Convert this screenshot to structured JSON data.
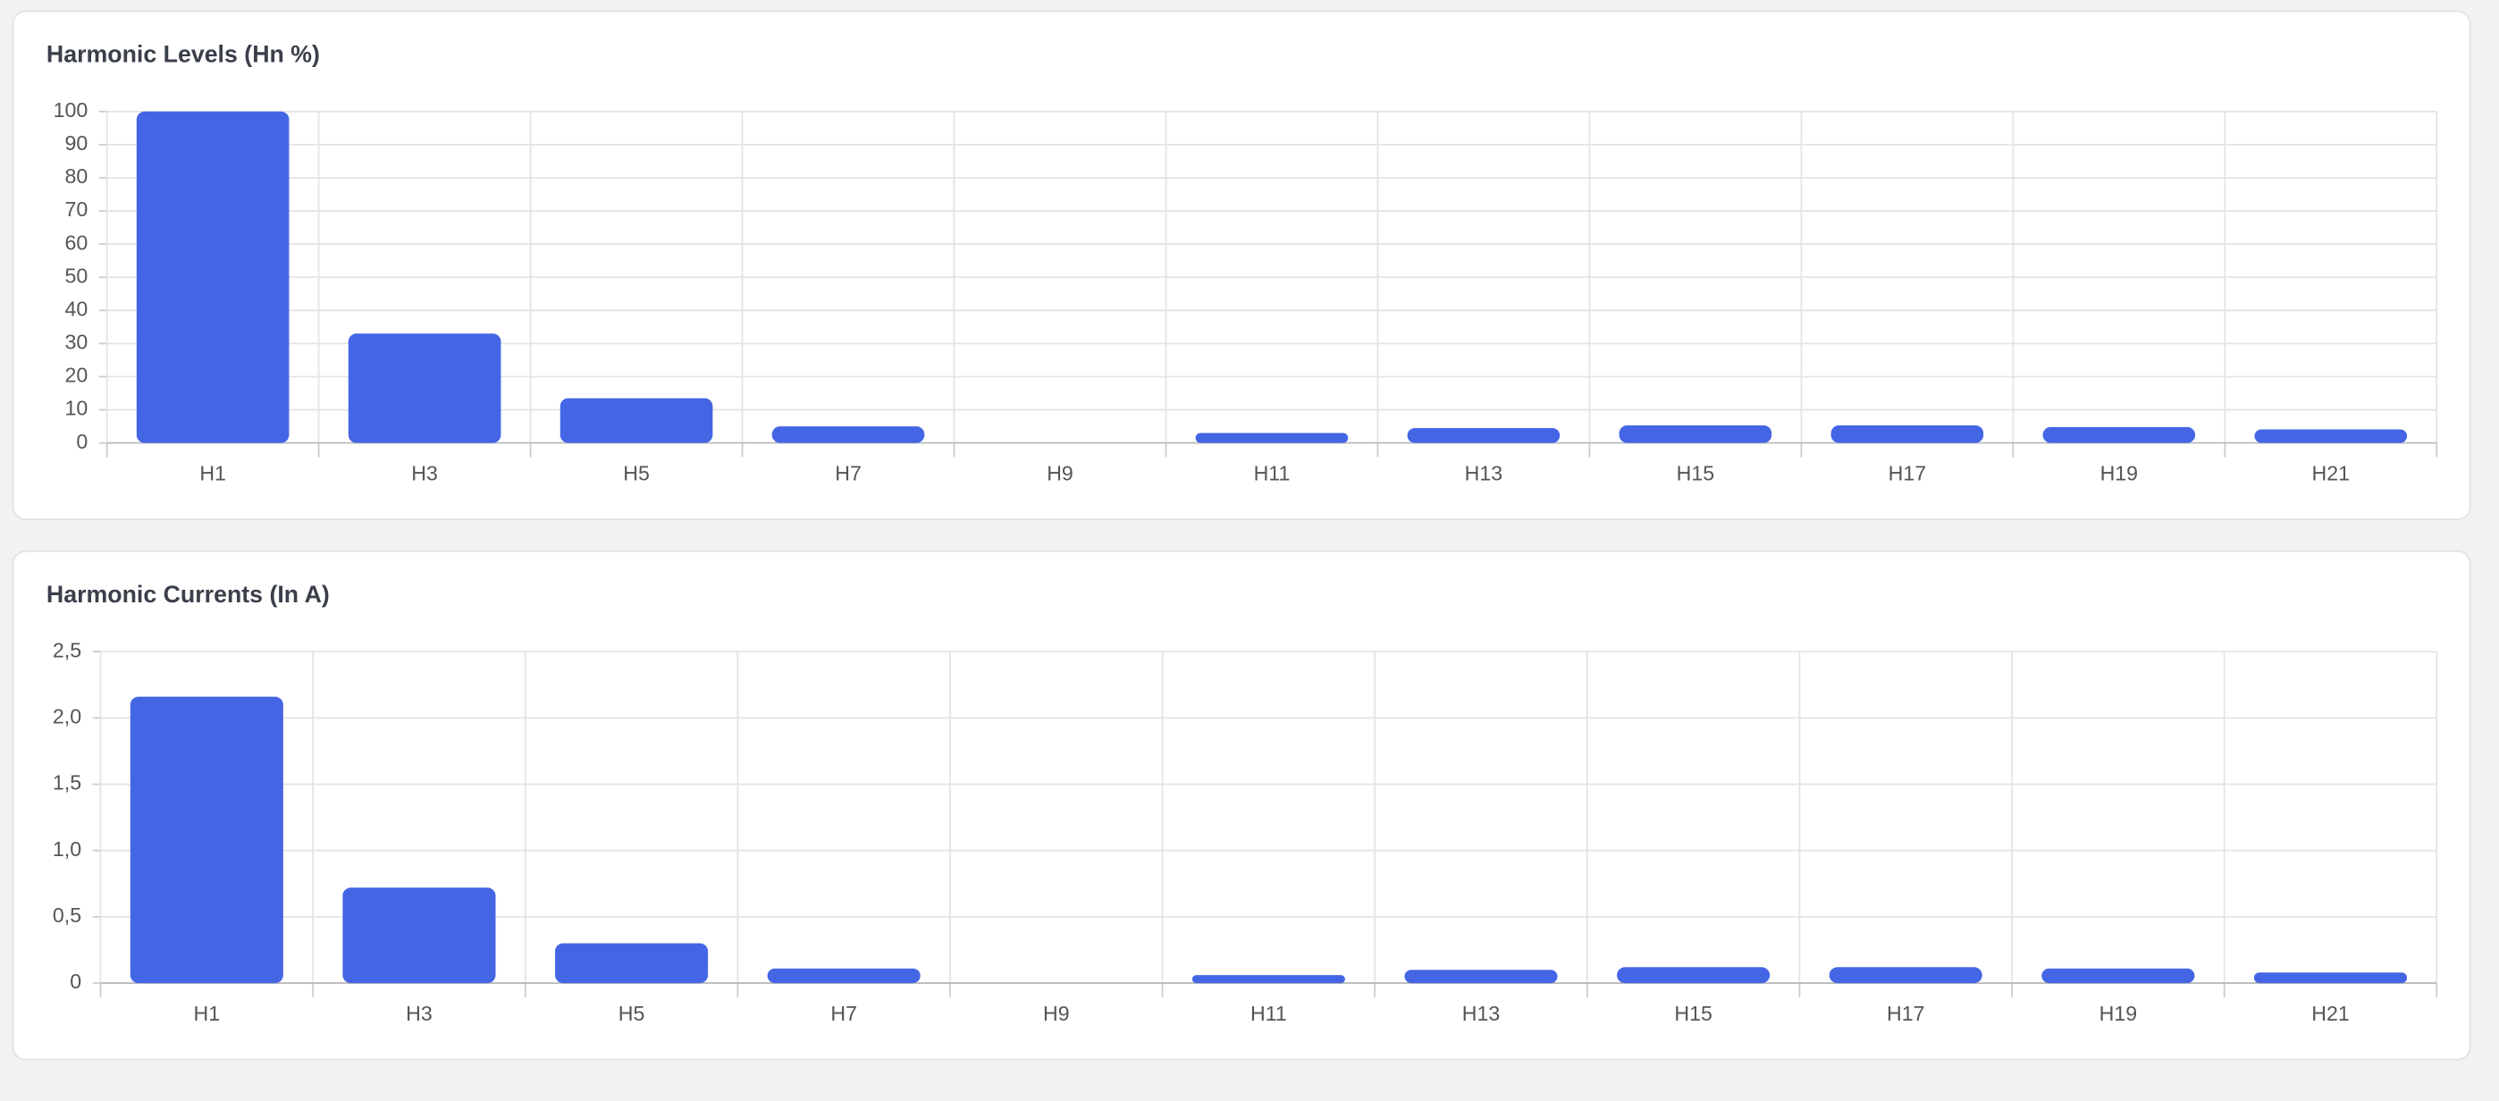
{
  "chart_data": [
    {
      "type": "bar",
      "title": "Harmonic Levels (Hn %)",
      "categories": [
        "H1",
        "H3",
        "H5",
        "H7",
        "H9",
        "H11",
        "H13",
        "H15",
        "H17",
        "H19",
        "H21"
      ],
      "values": [
        100,
        33,
        13.5,
        5,
        0,
        3,
        4.5,
        5.3,
        5.3,
        4.8,
        4.1
      ],
      "color": "#4466e5",
      "ylim": [
        0,
        100
      ],
      "yticks": [
        0,
        10,
        20,
        30,
        40,
        50,
        60,
        70,
        80,
        90,
        100
      ],
      "grid": true
    },
    {
      "type": "bar",
      "title": "Harmonic Currents (In A)",
      "categories": [
        "H1",
        "H3",
        "H5",
        "H7",
        "H9",
        "H11",
        "H13",
        "H15",
        "H17",
        "H19",
        "H21"
      ],
      "values": [
        2.16,
        0.72,
        0.3,
        0.11,
        0,
        0.06,
        0.1,
        0.12,
        0.12,
        0.11,
        0.08
      ],
      "color": "#4466e5",
      "ylim": [
        0,
        2.5
      ],
      "yticks": [
        0,
        {
          "value": 0.5,
          "label": "0,5"
        },
        {
          "value": 1,
          "label": "1,0"
        },
        {
          "value": 1.5,
          "label": "1,5"
        },
        {
          "value": 2,
          "label": "2,0"
        },
        {
          "value": 2.5,
          "label": "2,5"
        }
      ],
      "grid": true
    }
  ]
}
